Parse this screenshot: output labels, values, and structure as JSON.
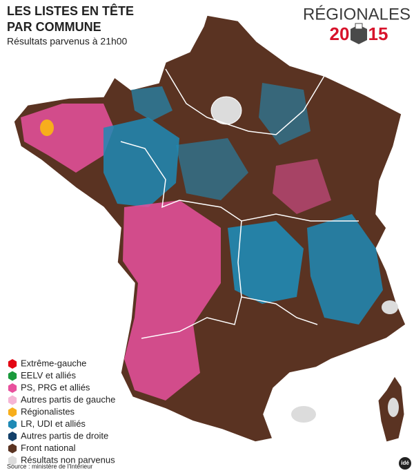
{
  "header": {
    "title_lines": [
      "LES LISTES EN TÊTE",
      "PAR COMMUNE"
    ],
    "subtitle": "Résultats parvenus à 21h00"
  },
  "logo": {
    "word": "RÉGIONALES",
    "year_left": "20",
    "year_right": "15"
  },
  "legend": [
    {
      "label": "Extrême-gauche",
      "color": "#e30613"
    },
    {
      "label": "EELV et alliés",
      "color": "#1a9a3c"
    },
    {
      "label": "PS, PRG et alliés",
      "color": "#e8519d"
    },
    {
      "label": "Autres partis de gauche",
      "color": "#f5b5d5"
    },
    {
      "label": "Régionalistes",
      "color": "#f7ae1c"
    },
    {
      "label": "LR, UDI et alliés",
      "color": "#1f8ab5"
    },
    {
      "label": "Autres partis de droite",
      "color": "#13406a"
    },
    {
      "label": "Front national",
      "color": "#5a3322"
    },
    {
      "label": "Résultats non parvenus",
      "color": "#dcdcdc"
    }
  ],
  "source": "Source : ministère de l'Intérieur",
  "credit": "idé"
}
